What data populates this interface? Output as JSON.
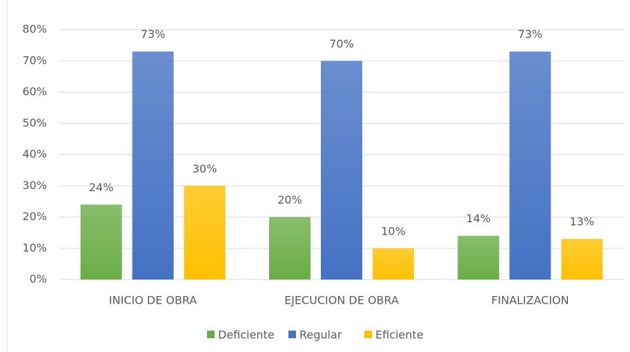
{
  "chart_data": {
    "type": "bar",
    "categories": [
      "INICIO DE OBRA",
      "EJECUCION DE OBRA",
      "FINALIZACION"
    ],
    "series": [
      {
        "name": "Deficiente",
        "color": "#6aad46",
        "values": [
          24,
          20,
          14
        ],
        "value_labels": [
          "24%",
          "20%",
          "14%"
        ]
      },
      {
        "name": "Regular",
        "color": "#4472c4",
        "values": [
          73,
          70,
          73
        ],
        "value_labels": [
          "73%",
          "70%",
          "73%"
        ]
      },
      {
        "name": "Eficiente",
        "color": "#ffc000",
        "values": [
          30,
          10,
          13
        ],
        "value_labels": [
          "30%",
          "10%",
          "13%"
        ]
      }
    ],
    "ylim": [
      0,
      80
    ],
    "yticks": [
      {
        "value": 0,
        "label": "0%"
      },
      {
        "value": 10,
        "label": "10%"
      },
      {
        "value": 20,
        "label": "20%"
      },
      {
        "value": 30,
        "label": "30%"
      },
      {
        "value": 40,
        "label": "40%"
      },
      {
        "value": 50,
        "label": "50%"
      },
      {
        "value": 60,
        "label": "60%"
      },
      {
        "value": 70,
        "label": "70%"
      },
      {
        "value": 80,
        "label": "80%"
      }
    ],
    "grid": true,
    "legend": "bottom"
  }
}
